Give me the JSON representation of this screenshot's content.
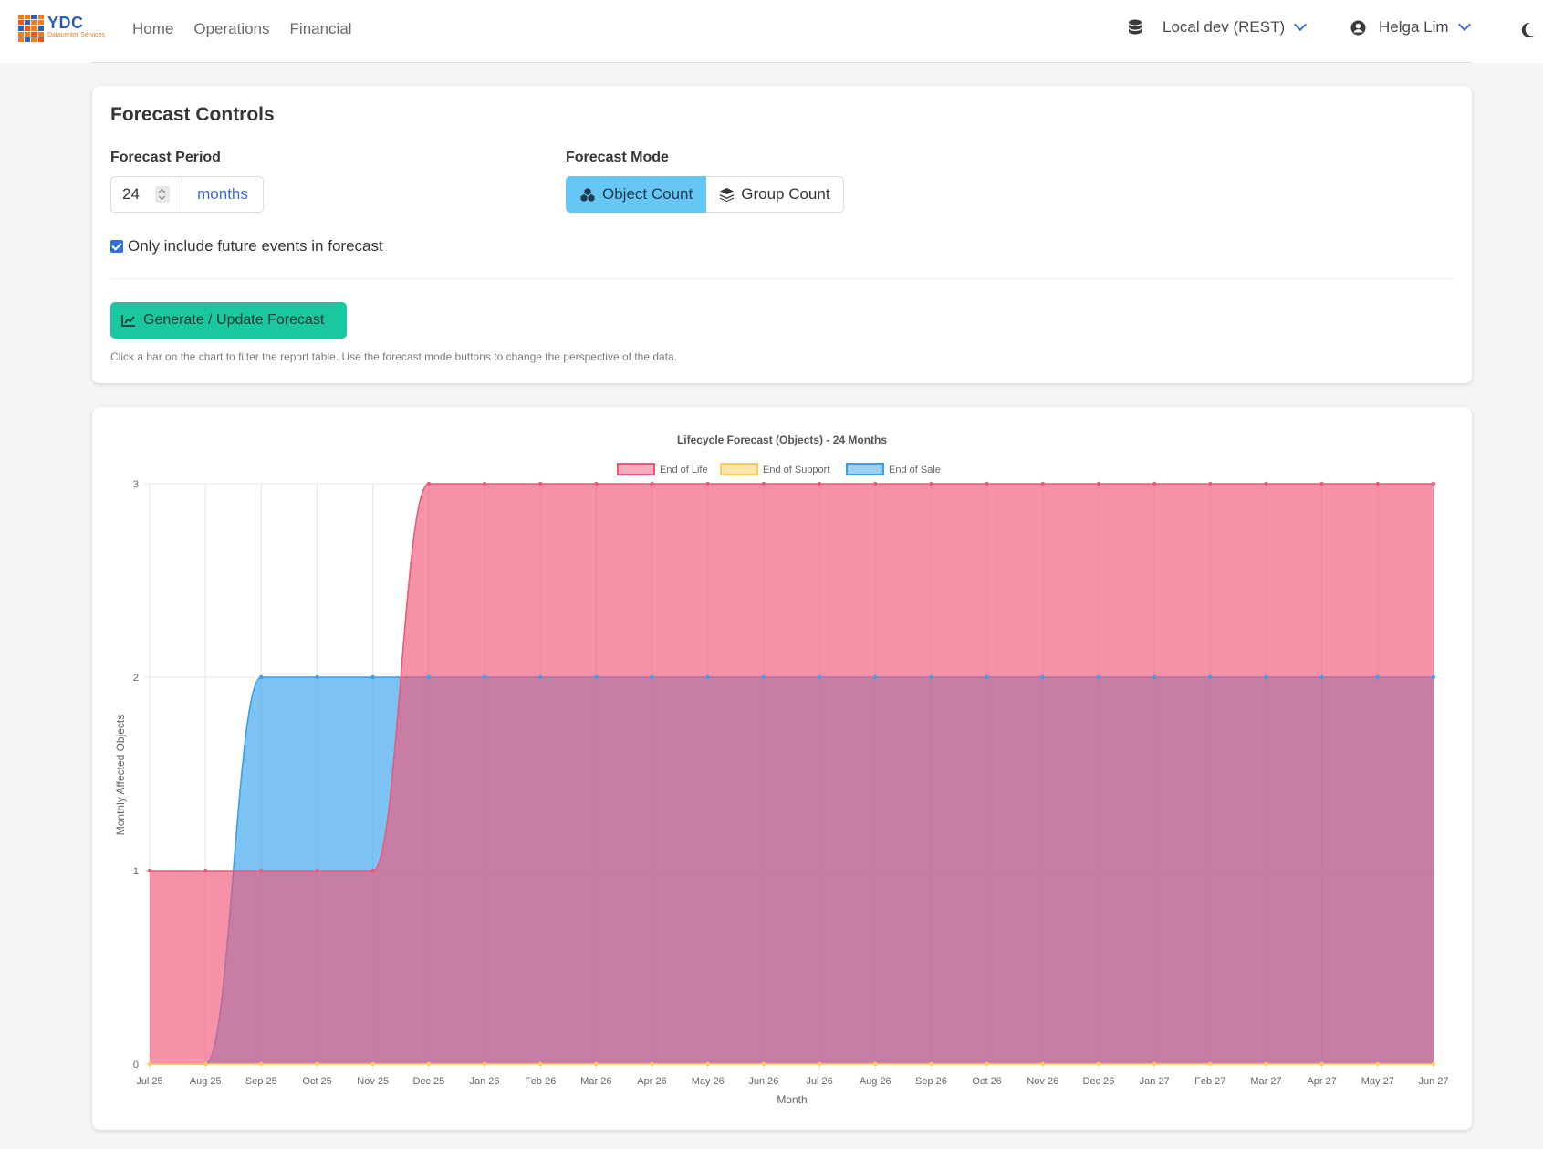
{
  "brand": {
    "name": "YDC",
    "subtitle": "Datacenter Services"
  },
  "nav": {
    "links": [
      "Home",
      "Operations",
      "Financial"
    ]
  },
  "connection": {
    "label": "Local dev (REST)",
    "icon": "database-icon"
  },
  "user": {
    "name": "Helga Lim",
    "icon": "user-circle-icon"
  },
  "theme_toggle": {
    "icon": "moon-icon"
  },
  "controls": {
    "title": "Forecast Controls",
    "period_label": "Forecast Period",
    "period_value": "24",
    "period_unit": "months",
    "mode_label": "Forecast Mode",
    "modes": [
      {
        "label": "Object Count",
        "icon": "cubes-icon",
        "active": true
      },
      {
        "label": "Group Count",
        "icon": "layers-icon",
        "active": false
      }
    ],
    "future_only_label": "Only include future events in forecast",
    "future_only_checked": true,
    "generate_label": "Generate / Update Forecast",
    "hint": "Click a bar on the chart to filter the report table. Use the forecast mode buttons to change the perspective of the data."
  },
  "chart_data": {
    "type": "area",
    "title": "Lifecycle Forecast (Objects) - 24 Months",
    "xlabel": "Month",
    "ylabel": "Monthly Affected Objects",
    "ylim": [
      0,
      3
    ],
    "yticks": [
      0,
      1,
      2,
      3
    ],
    "legend_position": "top-center",
    "grid": true,
    "categories": [
      "Jul 25",
      "Aug 25",
      "Sep 25",
      "Oct 25",
      "Nov 25",
      "Dec 25",
      "Jan 26",
      "Feb 26",
      "Mar 26",
      "Apr 26",
      "May 26",
      "Jun 26",
      "Jul 26",
      "Aug 26",
      "Sep 26",
      "Oct 26",
      "Nov 26",
      "Dec 26",
      "Jan 27",
      "Feb 27",
      "Mar 27",
      "Apr 27",
      "May 27",
      "Jun 27"
    ],
    "series": [
      {
        "name": "End of Life",
        "color": "#f0577a",
        "values": [
          1,
          1,
          1,
          1,
          1,
          3,
          3,
          3,
          3,
          3,
          3,
          3,
          3,
          3,
          3,
          3,
          3,
          3,
          3,
          3,
          3,
          3,
          3,
          3
        ]
      },
      {
        "name": "End of Support",
        "color": "#ffcd56",
        "values": [
          0,
          0,
          0,
          0,
          0,
          0,
          0,
          0,
          0,
          0,
          0,
          0,
          0,
          0,
          0,
          0,
          0,
          0,
          0,
          0,
          0,
          0,
          0,
          0
        ]
      },
      {
        "name": "End of Sale",
        "color": "#36a2eb",
        "values": [
          0,
          0,
          2,
          2,
          2,
          2,
          2,
          2,
          2,
          2,
          2,
          2,
          2,
          2,
          2,
          2,
          2,
          2,
          2,
          2,
          2,
          2,
          2,
          2
        ]
      }
    ]
  }
}
